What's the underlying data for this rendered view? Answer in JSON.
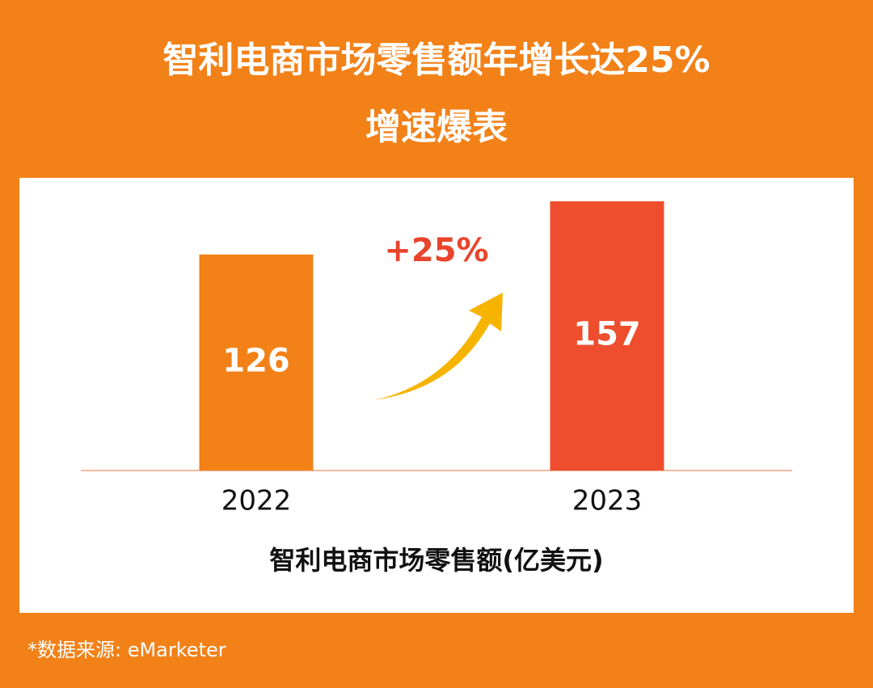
{
  "chart_data": {
    "type": "bar",
    "title": [
      "智利电商市场零售额年增长达25%",
      "增速爆表"
    ],
    "categories": [
      "2022",
      "2023"
    ],
    "values": [
      126,
      157
    ],
    "colors": [
      "#f28118",
      "#ee4e2e"
    ],
    "annotation": "+25%",
    "x_label": "智利电商市场零售额(亿美元)",
    "source": "*数据来源: eMarketer"
  }
}
